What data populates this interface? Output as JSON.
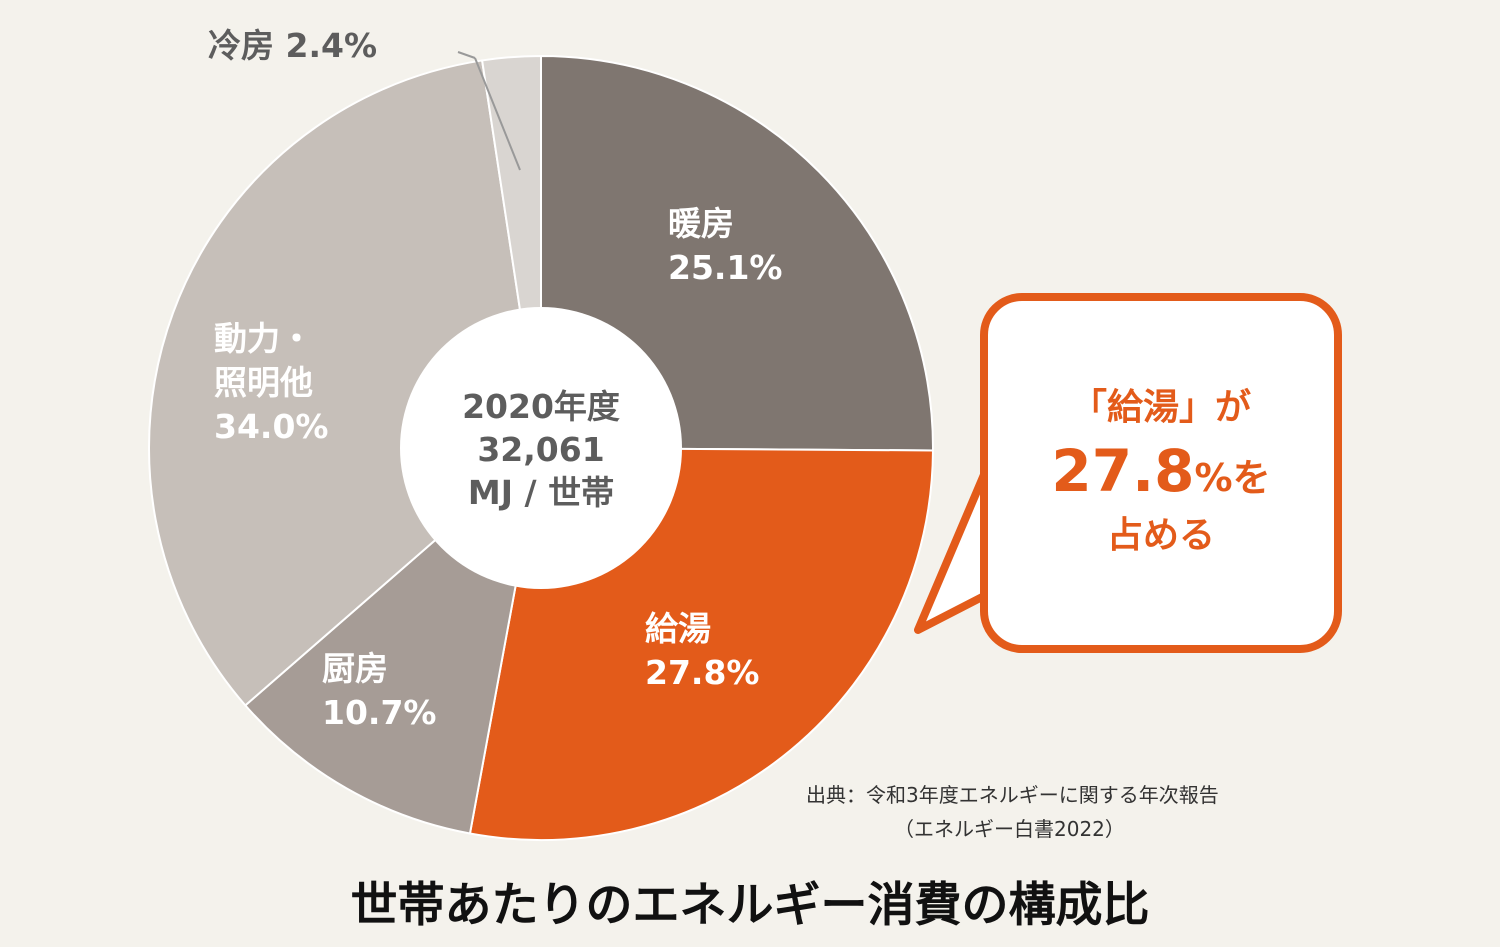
{
  "chart_data": {
    "type": "pie",
    "title": "世帯あたりのエネルギー消費の構成比",
    "center": {
      "year": "2020年度",
      "value": "32,061",
      "unit": "MJ / 世帯"
    },
    "slices": [
      {
        "name": "暖房",
        "value": 25.1,
        "label": "25.1%",
        "color": "#7f7670"
      },
      {
        "name": "給湯",
        "value": 27.8,
        "label": "27.8%",
        "color": "#e35b1a"
      },
      {
        "name": "厨房",
        "value": 10.7,
        "label": "10.7%",
        "color": "#a69c96"
      },
      {
        "name": "動力・照明他",
        "name_lines": [
          "動力・",
          "照明他"
        ],
        "value": 34.0,
        "label": "34.0%",
        "color": "#c6bfb9"
      },
      {
        "name": "冷房",
        "value": 2.4,
        "label": "冷房 2.4%",
        "color": "#d9d5d1"
      }
    ]
  },
  "callout": {
    "line1": "「給湯」が",
    "number": "27.8",
    "unit": "%を",
    "line3": "占める"
  },
  "source": {
    "line1": "出典：令和3年度エネルギーに関する年次報告",
    "line2": "（エネルギー白書2022）"
  },
  "colors": {
    "background": "#f4f2ec",
    "accent": "#e35b1a"
  }
}
